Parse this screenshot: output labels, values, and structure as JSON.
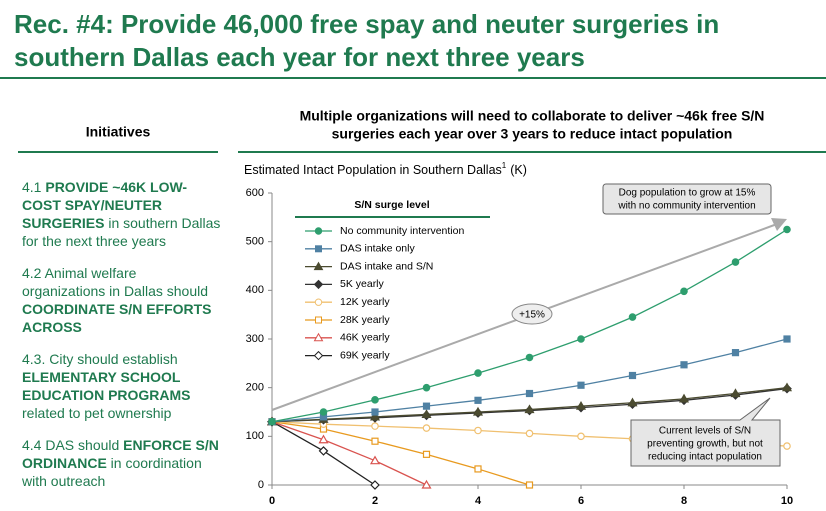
{
  "header": {
    "title_lines": [
      "Rec. #4: Provide 46,000 free spay and neuter surgeries in",
      "southern Dallas each year for next three years"
    ]
  },
  "initiatives": {
    "heading": "Initiatives",
    "items": [
      [
        "4.1 ",
        "PROVIDE ~46K LOW-COST SPAY/NEUTER SURGERIES",
        " in southern Dallas for the next three years"
      ],
      [
        "4.2 Animal welfare organizations in Dallas should ",
        "COORDINATE S/N EFFORTS ACROSS"
      ],
      [
        "4.3. City should establish ",
        "ELEMENTARY SCHOOL EDUCATION PROGRAMS",
        " related to pet ownership"
      ],
      [
        "4.4 DAS should ",
        "ENFORCE S/N ORDINANCE",
        " in coordination with outreach"
      ]
    ]
  },
  "chart_data": {
    "type": "line",
    "title_lines": [
      "Multiple organizations will need to collaborate to deliver ~46k free S/N",
      "surgeries each year over 3 years to reduce intact population"
    ],
    "y_label": "Estimated Intact Population in Southern Dallas",
    "y_label_footnote": "1",
    "y_label_unit": "(K)",
    "legend_title": "S/N surge level",
    "x": [
      0,
      1,
      2,
      3,
      4,
      5,
      6,
      7,
      8,
      9,
      10
    ],
    "xlim": [
      0,
      10
    ],
    "xticks": [
      0,
      2,
      4,
      6,
      8,
      10
    ],
    "ylim": [
      0,
      600
    ],
    "yticks": [
      0,
      100,
      200,
      300,
      400,
      500,
      600
    ],
    "series": [
      {
        "name": "No community intervention",
        "color": "#2e9e6e",
        "marker": "circle",
        "filled": true,
        "values": [
          130,
          150,
          175,
          200,
          230,
          262,
          300,
          345,
          398,
          458,
          525
        ]
      },
      {
        "name": "DAS intake only",
        "color": "#4f81a3",
        "marker": "square",
        "filled": true,
        "values": [
          130,
          140,
          150,
          162,
          174,
          188,
          205,
          225,
          247,
          272,
          300
        ]
      },
      {
        "name": "DAS intake and S/N",
        "color": "#4b4b30",
        "marker": "triangle",
        "filled": true,
        "values": [
          130,
          135,
          140,
          145,
          150,
          155,
          162,
          169,
          177,
          188,
          200
        ]
      },
      {
        "name": "5K yearly",
        "color": "#333333",
        "marker": "diamond",
        "filled": true,
        "values": [
          130,
          134,
          138,
          143,
          148,
          153,
          159,
          166,
          174,
          185,
          198
        ]
      },
      {
        "name": "12K yearly",
        "color": "#f0c070",
        "marker": "circle",
        "filled": false,
        "values": [
          130,
          125,
          121,
          117,
          112,
          106,
          100,
          95,
          90,
          85,
          80
        ]
      },
      {
        "name": "28K yearly",
        "color": "#e89a1f",
        "marker": "square",
        "filled": false,
        "values": [
          130,
          115,
          90,
          63,
          33,
          0,
          null,
          null,
          null,
          null,
          null
        ]
      },
      {
        "name": "46K yearly",
        "color": "#d9534f",
        "marker": "triangle",
        "filled": false,
        "values": [
          130,
          93,
          50,
          0,
          null,
          null,
          null,
          null,
          null,
          null,
          null
        ]
      },
      {
        "name": "69K yearly",
        "color": "#222222",
        "marker": "diamond",
        "filled": false,
        "values": [
          130,
          70,
          0,
          null,
          null,
          null,
          null,
          null,
          null,
          null,
          null
        ]
      }
    ],
    "annotations": {
      "growth": "+15%",
      "top_note": [
        "Dog population to grow at 15%",
        "with no community intervention"
      ],
      "bottom_note": [
        "Current levels of S/N",
        "preventing growth, but not",
        "reducing intact population"
      ]
    }
  }
}
